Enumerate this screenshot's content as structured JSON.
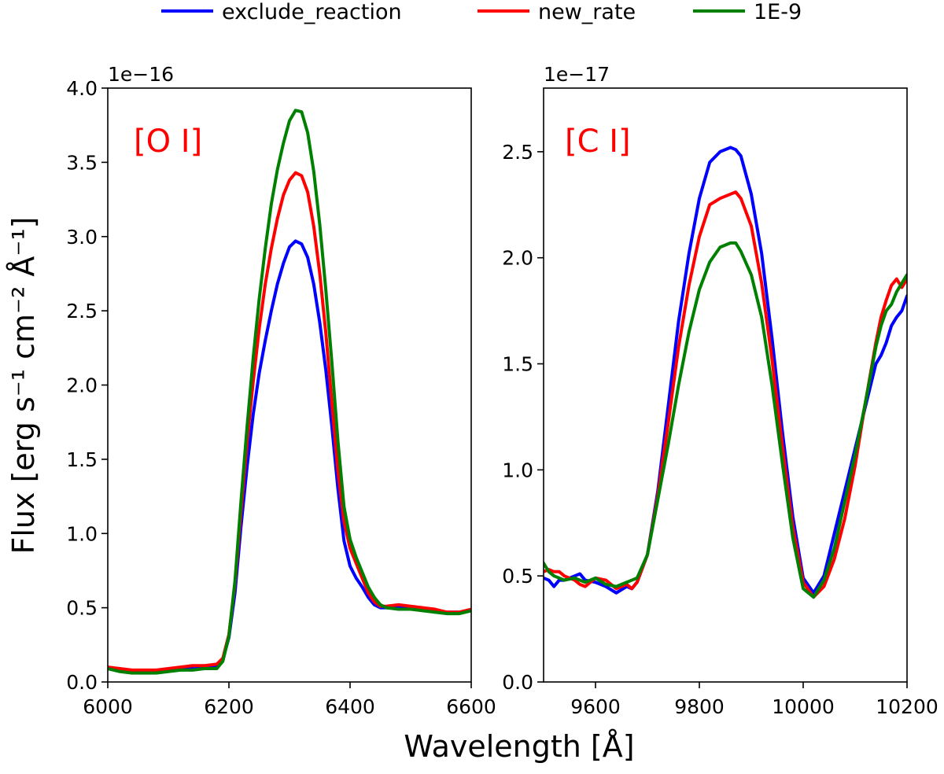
{
  "figure": {
    "xlabel": "Wavelength [Å]",
    "ylabel": "Flux [erg s⁻¹ cm⁻² Å⁻¹]"
  },
  "legend": [
    {
      "name": "exclude_reaction",
      "color": "#0000ff"
    },
    {
      "name": "new_rate",
      "color": "#ff0000"
    },
    {
      "name": "1E-9",
      "color": "#008000"
    }
  ],
  "chart_data": [
    {
      "type": "line",
      "title": "",
      "annotation": "[O I]",
      "annotation_color": "#ff0000",
      "offset_label": "1e−16",
      "xlabel": "Wavelength [Å]",
      "ylabel": "Flux [erg s⁻¹ cm⁻² Å⁻¹]",
      "xlim": [
        6000,
        6600
      ],
      "ylim": [
        0,
        4.0
      ],
      "xticks": [
        6000,
        6200,
        6400,
        6600
      ],
      "xtick_labels": [
        "6000",
        "6200",
        "6400",
        "6600"
      ],
      "yticks": [
        0,
        0.5,
        1.0,
        1.5,
        2.0,
        2.5,
        3.0,
        3.5,
        4.0
      ],
      "ytick_labels": [
        "0.0",
        "0.5",
        "1.0",
        "1.5",
        "2.0",
        "2.5",
        "3.0",
        "3.5",
        "4.0"
      ],
      "x": [
        6000,
        6020,
        6040,
        6060,
        6080,
        6100,
        6120,
        6140,
        6160,
        6180,
        6190,
        6200,
        6210,
        6220,
        6230,
        6240,
        6250,
        6260,
        6270,
        6280,
        6290,
        6300,
        6310,
        6320,
        6330,
        6340,
        6350,
        6360,
        6370,
        6380,
        6390,
        6400,
        6410,
        6420,
        6430,
        6440,
        6450,
        6460,
        6480,
        6500,
        6520,
        6540,
        6560,
        6580,
        6600
      ],
      "series": [
        {
          "name": "exclude_reaction",
          "color": "#0000ff",
          "values": [
            0.1,
            0.08,
            0.07,
            0.07,
            0.07,
            0.08,
            0.09,
            0.1,
            0.1,
            0.11,
            0.15,
            0.3,
            0.6,
            1.05,
            1.45,
            1.8,
            2.08,
            2.3,
            2.5,
            2.68,
            2.82,
            2.93,
            2.97,
            2.95,
            2.86,
            2.68,
            2.42,
            2.1,
            1.72,
            1.3,
            0.95,
            0.78,
            0.7,
            0.64,
            0.57,
            0.52,
            0.5,
            0.5,
            0.5,
            0.5,
            0.49,
            0.48,
            0.47,
            0.47,
            0.48
          ]
        },
        {
          "name": "new_rate",
          "color": "#ff0000",
          "values": [
            0.1,
            0.09,
            0.08,
            0.08,
            0.08,
            0.09,
            0.1,
            0.11,
            0.11,
            0.12,
            0.16,
            0.32,
            0.66,
            1.15,
            1.62,
            2.02,
            2.38,
            2.68,
            2.92,
            3.12,
            3.28,
            3.38,
            3.43,
            3.41,
            3.3,
            3.07,
            2.75,
            2.35,
            1.88,
            1.42,
            1.08,
            0.9,
            0.8,
            0.7,
            0.6,
            0.54,
            0.51,
            0.51,
            0.52,
            0.51,
            0.5,
            0.49,
            0.47,
            0.47,
            0.49
          ]
        },
        {
          "name": "1E-9",
          "color": "#008000",
          "values": [
            0.09,
            0.07,
            0.06,
            0.06,
            0.06,
            0.07,
            0.08,
            0.08,
            0.09,
            0.09,
            0.14,
            0.31,
            0.68,
            1.22,
            1.72,
            2.18,
            2.58,
            2.92,
            3.22,
            3.45,
            3.63,
            3.78,
            3.85,
            3.84,
            3.7,
            3.44,
            3.08,
            2.64,
            2.15,
            1.62,
            1.18,
            0.96,
            0.84,
            0.74,
            0.64,
            0.57,
            0.52,
            0.5,
            0.49,
            0.49,
            0.48,
            0.47,
            0.46,
            0.46,
            0.48
          ]
        }
      ]
    },
    {
      "type": "line",
      "title": "",
      "annotation": "[C I]",
      "annotation_color": "#ff0000",
      "offset_label": "1e−17",
      "xlabel": "Wavelength [Å]",
      "ylabel": "",
      "xlim": [
        9500,
        10200
      ],
      "ylim": [
        0,
        2.8
      ],
      "xticks": [
        9600,
        9800,
        10000,
        10200
      ],
      "xtick_labels": [
        "9600",
        "9800",
        "10000",
        "10200"
      ],
      "yticks": [
        0,
        0.5,
        1.0,
        1.5,
        2.0,
        2.5
      ],
      "ytick_labels": [
        "0.0",
        "0.5",
        "1.0",
        "1.5",
        "2.0",
        "2.5"
      ],
      "x": [
        9500,
        9510,
        9520,
        9530,
        9540,
        9560,
        9570,
        9580,
        9600,
        9620,
        9640,
        9660,
        9670,
        9680,
        9700,
        9720,
        9740,
        9760,
        9780,
        9800,
        9820,
        9840,
        9860,
        9870,
        9880,
        9900,
        9920,
        9940,
        9960,
        9980,
        10000,
        10020,
        10040,
        10060,
        10080,
        10100,
        10120,
        10140,
        10150,
        10160,
        10170,
        10180,
        10190,
        10200
      ],
      "series": [
        {
          "name": "exclude_reaction",
          "color": "#0000ff",
          "values": [
            0.49,
            0.48,
            0.45,
            0.48,
            0.48,
            0.5,
            0.51,
            0.48,
            0.47,
            0.45,
            0.42,
            0.45,
            0.44,
            0.47,
            0.6,
            0.9,
            1.3,
            1.7,
            2.02,
            2.28,
            2.45,
            2.5,
            2.52,
            2.51,
            2.48,
            2.3,
            2.02,
            1.62,
            1.18,
            0.78,
            0.49,
            0.42,
            0.5,
            0.7,
            0.9,
            1.1,
            1.3,
            1.5,
            1.54,
            1.6,
            1.68,
            1.72,
            1.75,
            1.82
          ]
        },
        {
          "name": "new_rate",
          "color": "#ff0000",
          "values": [
            0.52,
            0.53,
            0.52,
            0.52,
            0.5,
            0.48,
            0.46,
            0.45,
            0.49,
            0.48,
            0.44,
            0.46,
            0.44,
            0.47,
            0.6,
            0.88,
            1.22,
            1.58,
            1.87,
            2.1,
            2.25,
            2.28,
            2.3,
            2.31,
            2.28,
            2.15,
            1.88,
            1.52,
            1.11,
            0.73,
            0.47,
            0.4,
            0.45,
            0.58,
            0.77,
            1.02,
            1.32,
            1.6,
            1.72,
            1.8,
            1.87,
            1.9,
            1.86,
            1.9
          ]
        },
        {
          "name": "1E-9",
          "color": "#008000",
          "values": [
            0.56,
            0.52,
            0.5,
            0.49,
            0.48,
            0.49,
            0.48,
            0.47,
            0.49,
            0.46,
            0.45,
            0.47,
            0.48,
            0.49,
            0.6,
            0.86,
            1.12,
            1.4,
            1.65,
            1.85,
            1.98,
            2.05,
            2.07,
            2.07,
            2.03,
            1.92,
            1.72,
            1.4,
            1.03,
            0.68,
            0.44,
            0.4,
            0.48,
            0.63,
            0.85,
            1.07,
            1.32,
            1.58,
            1.68,
            1.75,
            1.78,
            1.84,
            1.88,
            1.92
          ]
        }
      ]
    }
  ]
}
